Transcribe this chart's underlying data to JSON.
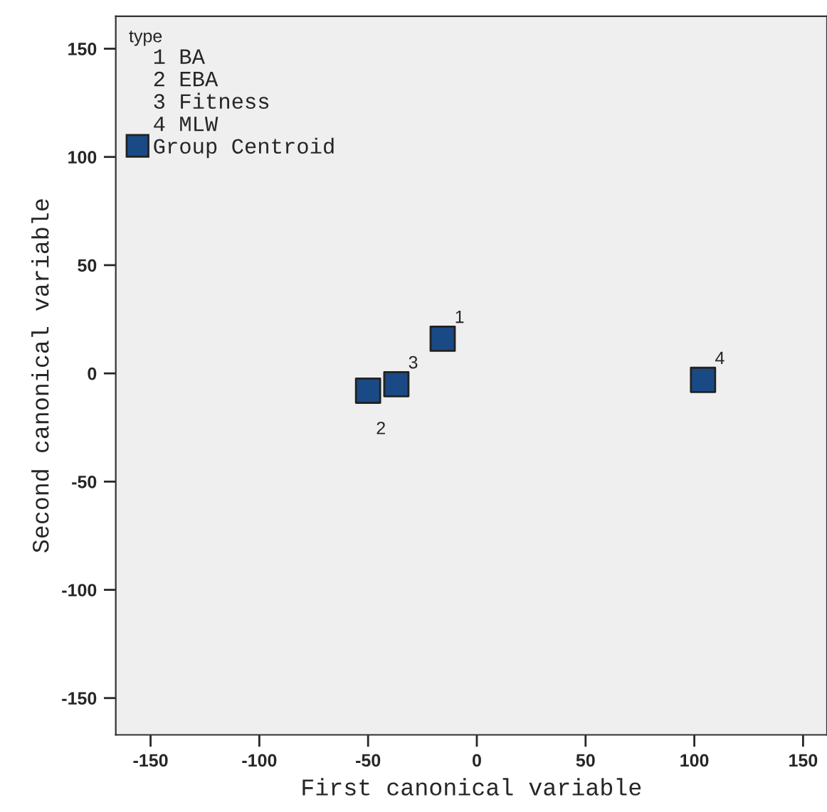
{
  "chart_data": {
    "type": "scatter",
    "xlabel": "First canonical variable",
    "ylabel": "Second canonical variable",
    "legend_title": "type",
    "xlim": [
      -166,
      161
    ],
    "ylim": [
      -167,
      165
    ],
    "xticks": [
      -150,
      -100,
      -50,
      0,
      50,
      100,
      150
    ],
    "yticks": [
      -150,
      -100,
      -50,
      0,
      50,
      100,
      150
    ],
    "grid": false,
    "legend": "top left",
    "marker": "square",
    "series": [
      {
        "name": "Group Centroid",
        "color": "#1a4a85",
        "x": [
          -15.7,
          -50,
          -37,
          104
        ],
        "values": [
          16,
          -8,
          -5,
          -3
        ]
      }
    ],
    "annotations": [
      "1 BA",
      "2 EBA",
      "3 Fitness",
      "4 MLW",
      {
        "text": "1",
        "x": -15.7,
        "y": 16
      },
      {
        "text": "2",
        "x": -50,
        "y": -8
      },
      {
        "text": "3",
        "x": -37,
        "y": -5
      },
      {
        "text": "4",
        "x": 104,
        "y": -3
      }
    ]
  }
}
